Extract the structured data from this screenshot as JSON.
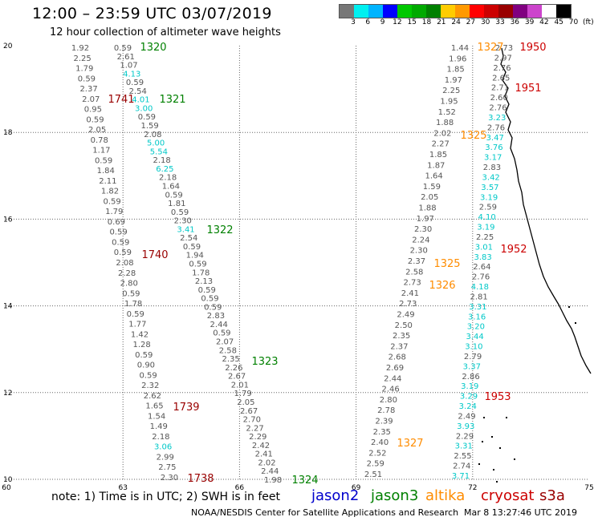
{
  "title": "12:00 – 23:59 UTC 03/07/2019",
  "subtitle": "12 hour collection of altimeter wave heights",
  "scale": {
    "colors": [
      "#777777",
      "#00f0f0",
      "#00b4ff",
      "#0000ff",
      "#00c800",
      "#00aa00",
      "#008000",
      "#ffcc00",
      "#ff9900",
      "#ff0000",
      "#cc0000",
      "#990000",
      "#800080",
      "#cc44cc",
      "#ffffff",
      "#000000"
    ],
    "labels": [
      "3",
      "6",
      "9",
      "12",
      "15",
      "18",
      "21",
      "24",
      "27",
      "30",
      "33",
      "36",
      "39",
      "42",
      "45",
      "70",
      "(ft)"
    ]
  },
  "axes": {
    "lon_labels": [
      "60",
      "63",
      "66",
      "69",
      "72",
      "75"
    ],
    "lat_labels": [
      "20",
      "18",
      "16",
      "14",
      "12",
      "10"
    ]
  },
  "colors": {
    "jason2": "#0000cc",
    "jason3": "#008000",
    "altika": "#ff8c00",
    "cryosat": "#cc0000",
    "s3a": "#990000",
    "wave_normal": "#555555",
    "wave_high": "#00c8c8"
  },
  "tracks": [
    {
      "values": [
        "1.92",
        "2.25",
        "1.79",
        "0.59",
        "2.37",
        "2.07",
        "0.95",
        "0.59",
        "2.05",
        "0.78",
        "1.17",
        "0.59",
        "1.84",
        "2.11",
        "1.82",
        "0.59",
        "1.79",
        "0.69",
        "0.59",
        "0.59",
        "0.59",
        "2.08",
        "2.28",
        "2.80",
        "0.59",
        "1.78",
        "0.59",
        "1.77",
        "1.42",
        "1.28",
        "0.59",
        "0.90",
        "0.59",
        "2.32",
        "2.62",
        "1.65",
        "1.54",
        "1.49",
        "2.18",
        "3.06",
        "2.99",
        "2.75",
        "2.30"
      ]
    },
    {
      "values": [
        "0.59",
        "2.61",
        "1.07",
        "4.13",
        "0.59",
        "2.54",
        "4.01",
        "3.00",
        "0.59",
        "1.59",
        "2.08",
        "5.00",
        "5.54",
        "2.18",
        "6.25",
        "2.18",
        "1.64",
        "0.59",
        "1.81",
        "0.59",
        "2.30",
        "3.41",
        "2.54",
        "0.59",
        "1.94",
        "0.59",
        "1.78",
        "2.13",
        "0.59",
        "0.59",
        "0.59",
        "2.83",
        "2.44",
        "0.59",
        "2.07",
        "2.58",
        "2.35",
        "2.26",
        "2.67",
        "2.01",
        "1.79",
        "2.05",
        "2.67",
        "2.70",
        "2.27",
        "2.29",
        "2.42",
        "2.41",
        "2.02",
        "2.44",
        "1.98"
      ]
    },
    {
      "values": [
        "1.44",
        "1.96",
        "1.85",
        "1.97",
        "2.25",
        "1.95",
        "1.52",
        "1.88",
        "2.02",
        "2.27",
        "1.85",
        "1.87",
        "1.64",
        "1.59",
        "2.05",
        "1.88",
        "1.97",
        "2.30",
        "2.24",
        "2.30",
        "2.37",
        "2.58",
        "2.73",
        "2.41",
        "2.73",
        "2.49",
        "2.50",
        "2.35",
        "2.37",
        "2.68",
        "2.69",
        "2.44",
        "2.46",
        "2.80",
        "2.78",
        "2.39",
        "2.35",
        "2.40",
        "2.52",
        "2.59",
        "2.51"
      ]
    },
    {
      "values": [
        "2.73",
        "2.97",
        "2.76",
        "2.65",
        "2.71",
        "2.60",
        "2.76",
        "3.23",
        "2.76",
        "3.47",
        "3.76",
        "3.17",
        "2.83",
        "3.42",
        "3.57",
        "3.19",
        "2.59",
        "4.10",
        "3.19",
        "2.25",
        "3.01",
        "3.83",
        "2.64",
        "2.76",
        "4.18",
        "2.81",
        "3.31",
        "3.16",
        "3.20",
        "3.44",
        "3.10",
        "2.79",
        "3.37",
        "2.86",
        "3.19",
        "3.29",
        "3.24",
        "2.49",
        "3.93",
        "2.29",
        "3.31",
        "2.55",
        "2.74",
        "3.71"
      ]
    }
  ],
  "pass_labels": [
    {
      "text": "1320",
      "sat": "jason3"
    },
    {
      "text": "1321",
      "sat": "jason3"
    },
    {
      "text": "1322",
      "sat": "jason3"
    },
    {
      "text": "1323",
      "sat": "jason3"
    },
    {
      "text": "1324",
      "sat": "jason3"
    },
    {
      "text": "1741",
      "sat": "s3a"
    },
    {
      "text": "1740",
      "sat": "s3a"
    },
    {
      "text": "1739",
      "sat": "s3a"
    },
    {
      "text": "1738",
      "sat": "s3a"
    },
    {
      "text": "1327",
      "sat": "altika"
    },
    {
      "text": "1325",
      "sat": "altika"
    },
    {
      "text": "1325",
      "sat": "altika"
    },
    {
      "text": "1326",
      "sat": "altika"
    },
    {
      "text": "1327",
      "sat": "altika"
    },
    {
      "text": "1950",
      "sat": "cryosat"
    },
    {
      "text": "1951",
      "sat": "cryosat"
    },
    {
      "text": "1952",
      "sat": "cryosat"
    },
    {
      "text": "1953",
      "sat": "cryosat"
    }
  ],
  "footer": {
    "note": "note:  1) Time is in UTC;  2) SWH is in feet",
    "sats": {
      "jason2": "jason2",
      "jason3": "jason3",
      "altika": "altika",
      "cryosat": "cryosat",
      "s3a": "s3a"
    },
    "credit": "NOAA/NESDIS Center for Satellite Applications and Research",
    "timestamp": "Mar  8 13:27:46 UTC 2019"
  }
}
